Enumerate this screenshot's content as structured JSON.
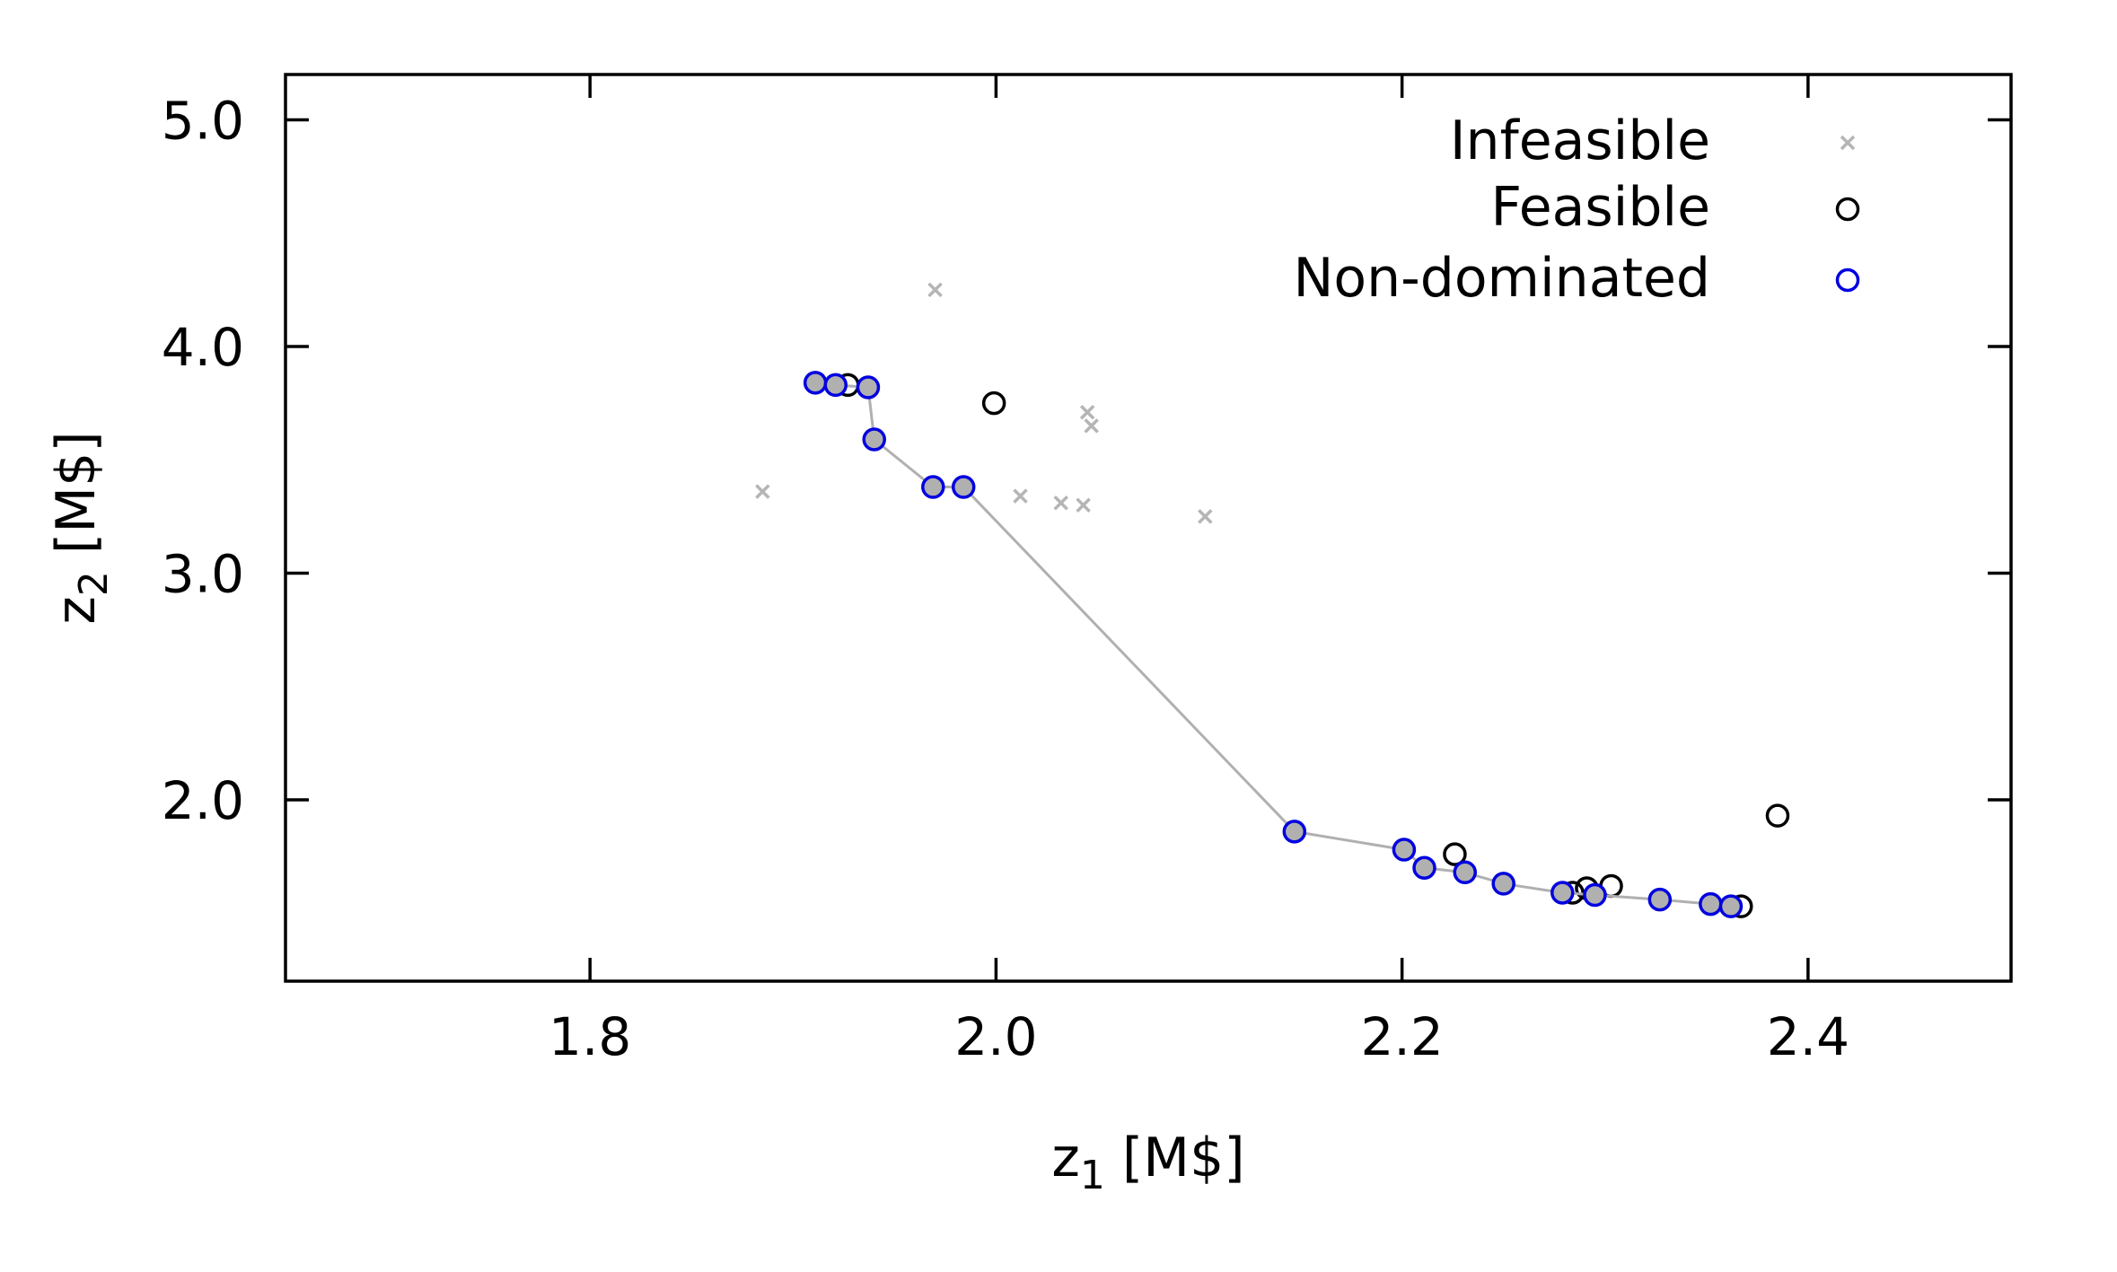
{
  "chart_data": {
    "type": "scatter",
    "xlabel": {
      "main": "z",
      "sub": "1",
      "unit": " [M$]"
    },
    "ylabel": {
      "main": "z",
      "sub": "2",
      "unit": " [M$]"
    },
    "xlim": [
      1.65,
      2.5
    ],
    "ylim": [
      1.2,
      5.2
    ],
    "x_ticks": [
      1.8,
      2.0,
      2.2,
      2.4
    ],
    "x_tick_labels": [
      "1.8",
      "2.0",
      "2.2",
      "2.4"
    ],
    "y_ticks": [
      2.0,
      3.0,
      4.0,
      5.0
    ],
    "y_tick_labels": [
      "2.0",
      "3.0",
      "4.0",
      "5.0"
    ],
    "grid": false,
    "legend_position": "top-right",
    "series": [
      {
        "name": "Infeasible",
        "marker": "x",
        "color": "#b5b5b5",
        "points": [
          [
            1.885,
            3.36
          ],
          [
            1.97,
            4.25
          ],
          [
            2.012,
            3.34
          ],
          [
            2.032,
            3.31
          ],
          [
            2.043,
            3.3
          ],
          [
            2.045,
            3.71
          ],
          [
            2.047,
            3.65
          ],
          [
            2.103,
            3.25
          ],
          [
            2.415,
            5.07
          ]
        ]
      },
      {
        "name": "Feasible",
        "marker": "open-circle",
        "color": "#000000",
        "points": [
          [
            1.927,
            3.83
          ],
          [
            1.999,
            3.75
          ],
          [
            2.226,
            1.76
          ],
          [
            2.284,
            1.59
          ],
          [
            2.291,
            1.61
          ],
          [
            2.303,
            1.62
          ],
          [
            2.367,
            1.53
          ],
          [
            2.385,
            1.93
          ]
        ]
      },
      {
        "name": "Non-dominated",
        "marker": "filled-circle",
        "color": "#0000e0",
        "fill": "#b0b0b0",
        "line_color": "#b0b0b0",
        "points": [
          [
            1.911,
            3.84
          ],
          [
            1.921,
            3.83
          ],
          [
            1.937,
            3.82
          ],
          [
            1.94,
            3.59
          ],
          [
            1.969,
            3.38
          ],
          [
            1.984,
            3.38
          ],
          [
            2.147,
            1.86
          ],
          [
            2.201,
            1.78
          ],
          [
            2.211,
            1.7
          ],
          [
            2.231,
            1.68
          ],
          [
            2.25,
            1.63
          ],
          [
            2.279,
            1.59
          ],
          [
            2.295,
            1.58
          ],
          [
            2.327,
            1.56
          ],
          [
            2.352,
            1.54
          ],
          [
            2.362,
            1.53
          ]
        ]
      }
    ]
  }
}
